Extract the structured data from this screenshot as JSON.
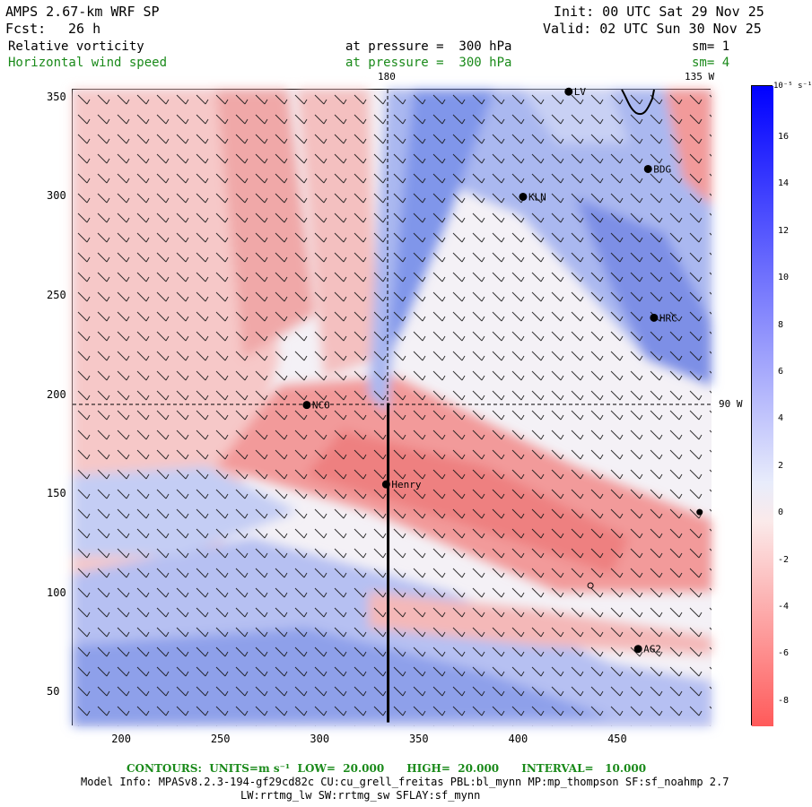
{
  "header": {
    "model": "AMPS 2.67-km WRF SP",
    "init": "Init: 00 UTC Sat 29 Nov 25",
    "fcst_label": "Fcst:",
    "fcst_value": "26 h",
    "valid": "Valid: 02 UTC Sun 30 Nov 25"
  },
  "fields": [
    {
      "name": "Relative vorticity",
      "level": "at pressure =  300 hPa",
      "smooth": "sm= 1",
      "color": "#000000"
    },
    {
      "name": "Horizontal wind speed",
      "level": "at pressure =  300 hPa",
      "smooth": "sm= 4",
      "color": "#1a8a1a"
    }
  ],
  "map": {
    "meridian_labels": [
      "180",
      "135 W",
      "90 W"
    ],
    "x_ticks": [
      "200",
      "250",
      "300",
      "350",
      "400",
      "450"
    ],
    "y_ticks": [
      "350",
      "300",
      "250",
      "200",
      "150",
      "100",
      "50"
    ],
    "stations": [
      {
        "name": "LV",
        "x": 425,
        "y": 353
      },
      {
        "name": "BDG",
        "x": 465,
        "y": 314
      },
      {
        "name": "KLN",
        "x": 402,
        "y": 300
      },
      {
        "name": "HRC",
        "x": 468,
        "y": 239
      },
      {
        "name": "NCO",
        "x": 293,
        "y": 195
      },
      {
        "name": "Henry",
        "x": 333,
        "y": 155
      },
      {
        "name": "AG2",
        "x": 460,
        "y": 72
      },
      {
        "name": "",
        "x": 491,
        "y": 141
      },
      {
        "name": "",
        "x": 436,
        "y": 104
      }
    ],
    "cross_section": {
      "x": 334,
      "y_from": 35,
      "y_to": 196
    }
  },
  "colorbar": {
    "units": "10⁻⁵ s⁻¹",
    "labels": [
      "16",
      "14",
      "12",
      "10",
      "8",
      "6",
      "4",
      "2",
      "0",
      "-2",
      "-4",
      "-6",
      "-8"
    ],
    "positive_color": "#0000ff",
    "negative_color": "#ff5a5a"
  },
  "footer": {
    "contours": "CONTOURS:  UNITS=m s⁻¹  LOW=  20.000      HIGH=  20.000      INTERVAL=   10.000",
    "model_info": "Model Info: MPASv8.2.3-194-gf29cd82c CU:cu_grell_freitas PBL:bl_mynn MP:mp_thompson SF:sf_noahmp 2.7",
    "model_info2": "LW:rrtmg_lw SW:rrtmg_sw SFLAY:sf_mynn"
  }
}
